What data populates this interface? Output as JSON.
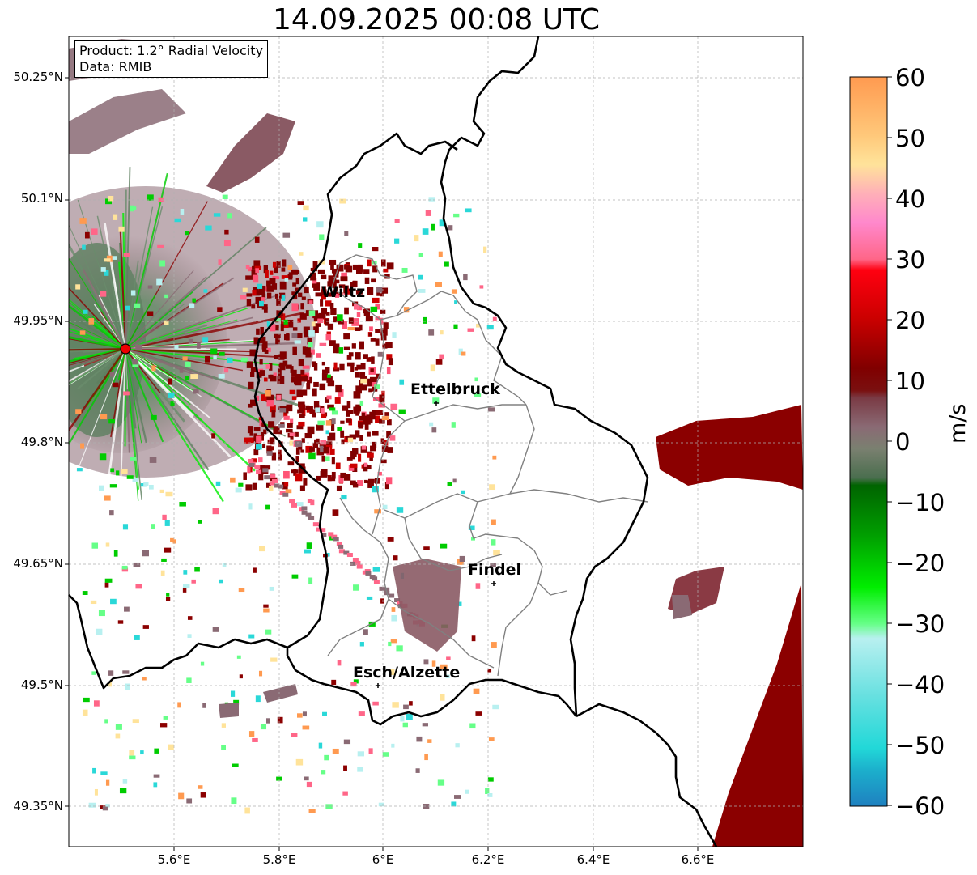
{
  "title": "14.09.2025 00:08 UTC",
  "info": {
    "product": "Product: 1.2° Radial Velocity",
    "data": "Data: RMIB"
  },
  "axes": {
    "lat_labels": [
      "50.25°N",
      "50.1°N",
      "49.95°N",
      "49.8°N",
      "49.65°N",
      "49.5°N",
      "49.35°N"
    ],
    "lon_labels": [
      "5.6°E",
      "5.8°E",
      "6°E",
      "6.2°E",
      "6.4°E",
      "6.6°E"
    ]
  },
  "cities": [
    {
      "name": "Wiltz"
    },
    {
      "name": "Ettelbruck"
    },
    {
      "name": "Findel"
    },
    {
      "name": "Esch/Alzette"
    }
  ],
  "colorbar": {
    "label": "m/s",
    "ticks": [
      "60",
      "50",
      "40",
      "30",
      "20",
      "10",
      "0",
      "−10",
      "−20",
      "−30",
      "−40",
      "−50",
      "−60"
    ],
    "range": [
      -60,
      60
    ],
    "colors": {
      "far_receding": "#ff9a4c",
      "receding_red": "#8b0000",
      "near_zero_pink": "#8a6470",
      "near_zero_green": "#5e8060",
      "approaching_green": "#00cc00",
      "far_approaching_cyan": "#2ad8d8",
      "radar_site": "#ee0000"
    }
  },
  "map_features": [
    "country borders",
    "canton boundaries",
    "radar site marker"
  ]
}
